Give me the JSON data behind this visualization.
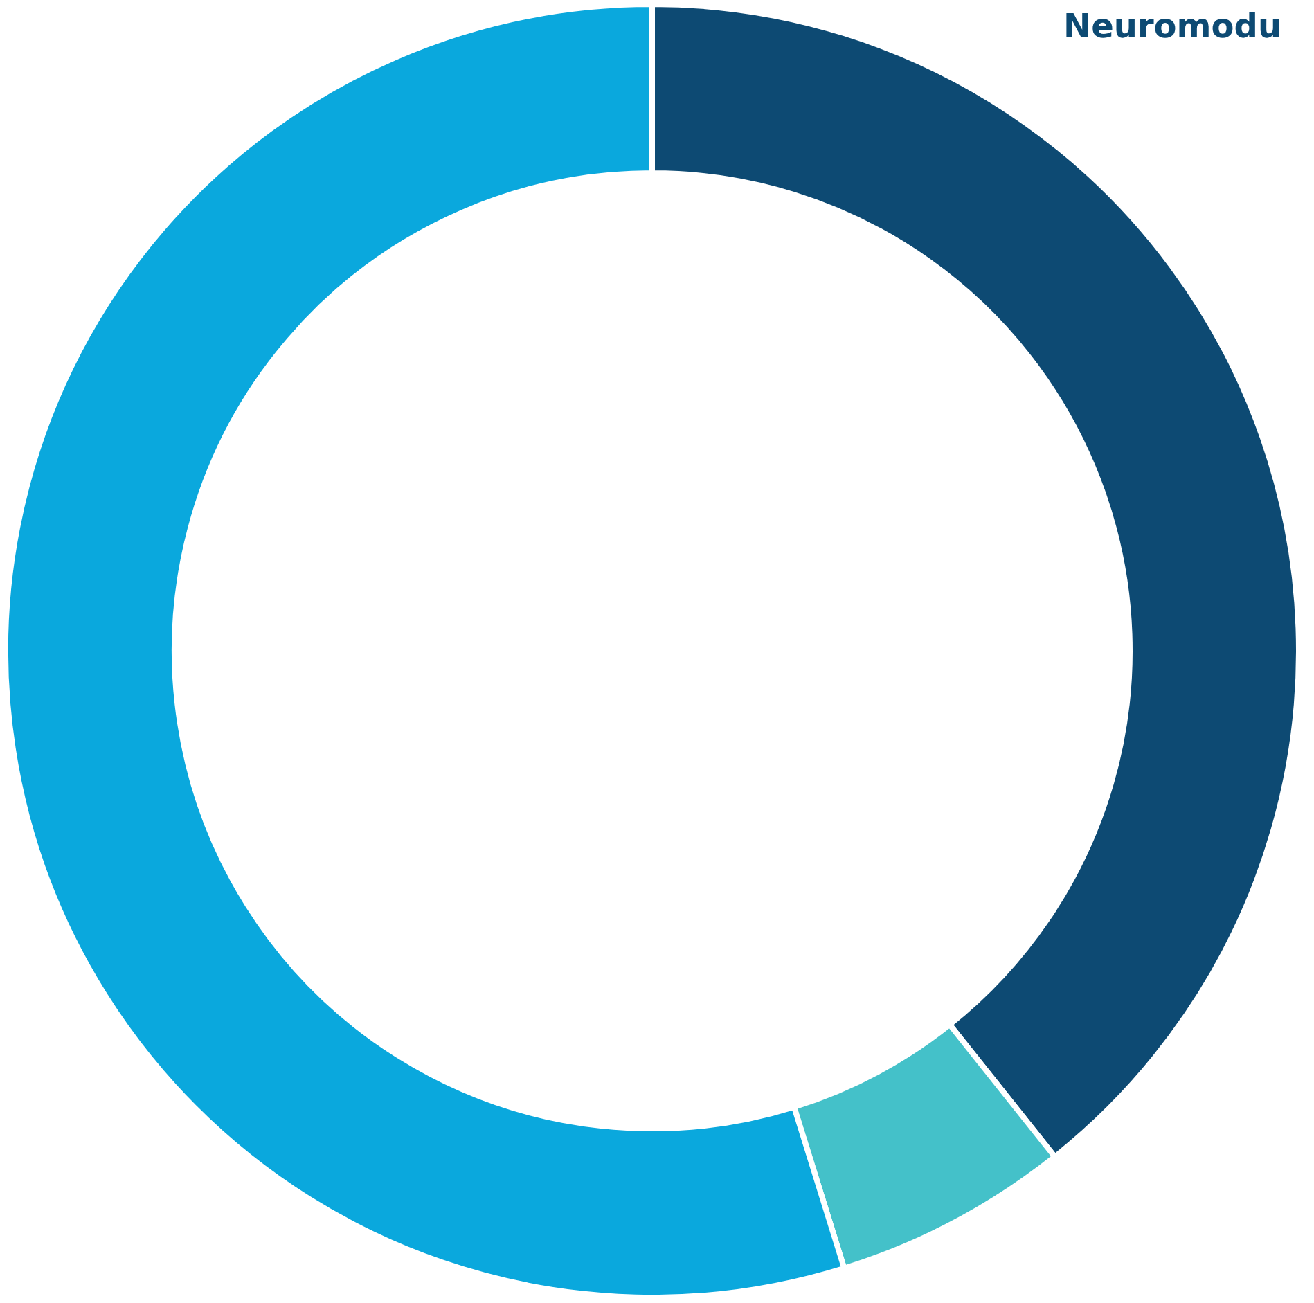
{
  "chart_data": {
    "type": "donut",
    "categories": [
      "Neuromodu",
      null,
      null
    ],
    "values": [
      39.3,
      5.9,
      54.8
    ],
    "colors": [
      "#0d4a73",
      "#44c1c9",
      "#0aa8dd"
    ]
  }
}
